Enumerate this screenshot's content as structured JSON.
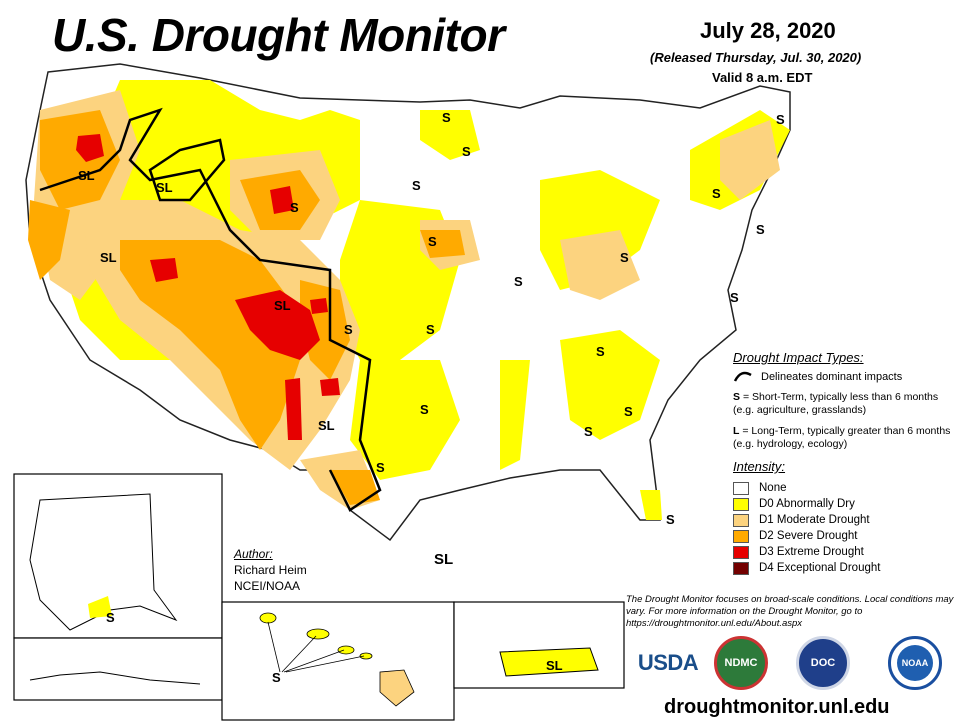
{
  "header": {
    "title": "U.S. Drought Monitor",
    "date": "July 28, 2020",
    "released": "(Released Thursday, Jul. 30, 2020)",
    "valid": "Valid 8 a.m. EDT"
  },
  "impact_types": {
    "heading": "Drought Impact Types:",
    "delineates": "Delineates dominant impacts",
    "short_term_code": "S",
    "short_term_text": "= Short-Term, typically less than 6 months (e.g. agriculture, grasslands)",
    "long_term_code": "L",
    "long_term_text": "= Long-Term, typically greater than 6 months (e.g. hydrology, ecology)"
  },
  "intensity": {
    "heading": "Intensity:",
    "levels": [
      {
        "label": "None",
        "color": "#ffffff"
      },
      {
        "label": "D0 Abnormally Dry",
        "color": "#ffff00"
      },
      {
        "label": "D1 Moderate Drought",
        "color": "#fcd37f"
      },
      {
        "label": "D2 Severe Drought",
        "color": "#ffaa00"
      },
      {
        "label": "D3 Extreme Drought",
        "color": "#e60000"
      },
      {
        "label": "D4 Exceptional Drought",
        "color": "#730000"
      }
    ]
  },
  "author": {
    "heading": "Author:",
    "name": "Richard Heim",
    "org": "NCEI/NOAA"
  },
  "disclaimer": "The Drought Monitor focuses on broad-scale conditions. Local conditions may vary. For more information on the Drought Monitor, go to https://droughtmonitor.unl.edu/About.aspx",
  "logos": {
    "usda": "USDA",
    "ndmc": "NDMC",
    "commerce": "DOC",
    "noaa": "NOAA"
  },
  "website": "droughtmonitor.unl.edu",
  "map_labels": {
    "sl": "SL",
    "s": "S"
  }
}
